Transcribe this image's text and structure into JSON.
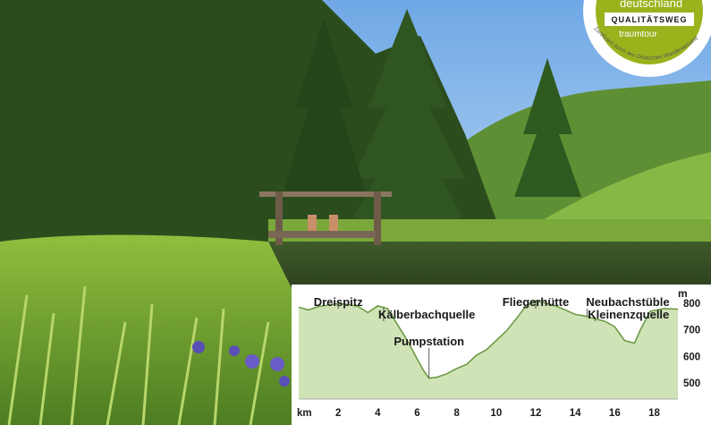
{
  "badge": {
    "line1": "deutschland",
    "line2": "QUALITÄTSWEG",
    "line3": "traumtour",
    "ring_text": "Zertifiziert durch den Deutschen Wanderverband",
    "color_green": "#9cb21d",
    "color_white": "#ffffff"
  },
  "colors": {
    "fill": "#cfe3b6",
    "line": "#6e9a45",
    "panel": "#ffffff",
    "text": "#1a1a1a"
  },
  "chart_data": {
    "type": "area",
    "xlabel": "km",
    "ylabel": "m",
    "xlim": [
      0,
      19.2
    ],
    "ylim": [
      440,
      830
    ],
    "x_ticks": [
      2,
      4,
      6,
      8,
      10,
      12,
      14,
      16,
      18
    ],
    "y_ticks": [
      500,
      600,
      700,
      800
    ],
    "profile": [
      [
        0,
        785
      ],
      [
        0.5,
        775
      ],
      [
        1,
        788
      ],
      [
        1.5,
        793
      ],
      [
        2,
        800
      ],
      [
        2.5,
        795
      ],
      [
        3,
        788
      ],
      [
        3.5,
        765
      ],
      [
        4,
        790
      ],
      [
        4.5,
        780
      ],
      [
        5,
        720
      ],
      [
        5.5,
        660
      ],
      [
        6,
        590
      ],
      [
        6.3,
        550
      ],
      [
        6.6,
        518
      ],
      [
        7,
        522
      ],
      [
        7.5,
        535
      ],
      [
        8,
        555
      ],
      [
        8.5,
        570
      ],
      [
        9,
        605
      ],
      [
        9.5,
        625
      ],
      [
        10,
        660
      ],
      [
        10.5,
        695
      ],
      [
        11,
        740
      ],
      [
        11.5,
        790
      ],
      [
        12,
        810
      ],
      [
        12.5,
        800
      ],
      [
        13,
        790
      ],
      [
        13.5,
        775
      ],
      [
        14,
        758
      ],
      [
        14.5,
        752
      ],
      [
        15,
        742
      ],
      [
        15.5,
        732
      ],
      [
        16,
        712
      ],
      [
        16.5,
        660
      ],
      [
        17,
        650
      ],
      [
        17.3,
        700
      ],
      [
        17.8,
        770
      ],
      [
        18.5,
        780
      ],
      [
        19.2,
        778
      ]
    ],
    "annotations": [
      {
        "label": "Dreispitz",
        "x": 2.0,
        "y": 800
      },
      {
        "label": "Kälberbachquelle",
        "x": 4.3,
        "y": 785
      },
      {
        "label": "Pumpstation",
        "x": 6.6,
        "y": 518
      },
      {
        "label": "Fliegerhütte",
        "x": 12.0,
        "y": 810
      },
      {
        "label": "Neubachstüble",
        "x": 14.6,
        "y": 752
      },
      {
        "label": "Kleinenzquelle",
        "x": 15.0,
        "y": 742
      }
    ]
  }
}
